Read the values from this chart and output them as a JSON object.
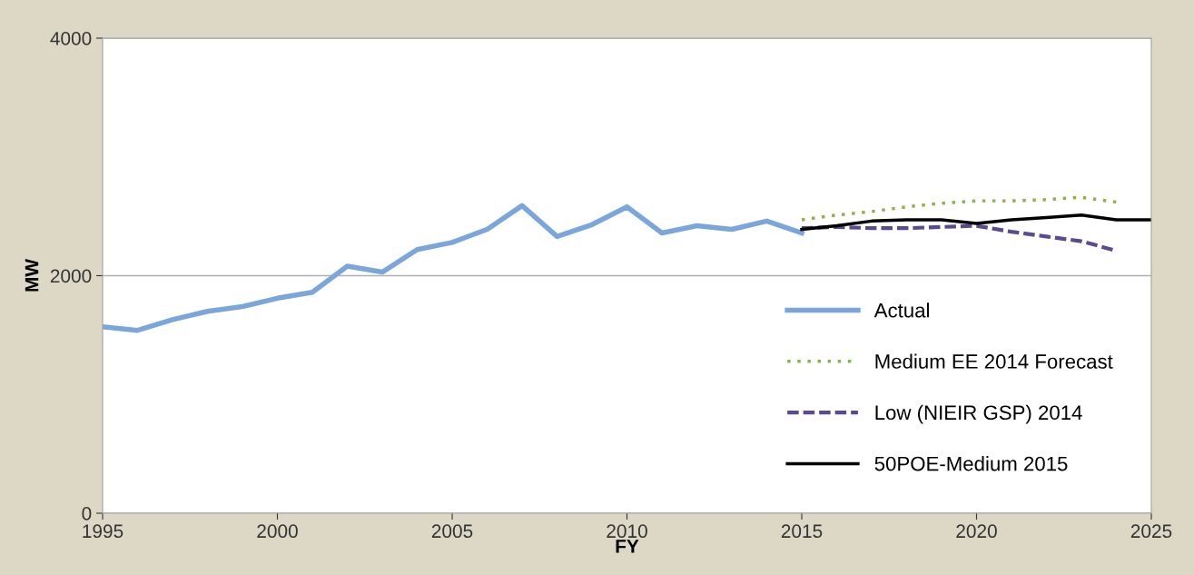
{
  "chart_data": {
    "type": "line",
    "xlabel": "FY",
    "ylabel": "MW",
    "xlim": [
      1995,
      2025
    ],
    "xticks": [
      1995,
      2000,
      2005,
      2010,
      2015,
      2020,
      2025
    ],
    "ylim": [
      0,
      4000
    ],
    "yticks": [
      0,
      2000,
      4000
    ],
    "grid": "y",
    "legend": "bottom right",
    "series": [
      {
        "name": "Actual",
        "color": "#7aa6dc",
        "line_style": "solid",
        "x": [
          1995,
          1996,
          1997,
          1998,
          1999,
          2000,
          2001,
          2002,
          2003,
          2004,
          2005,
          2006,
          2007,
          2008,
          2009,
          2010,
          2011,
          2012,
          2013,
          2014,
          2015
        ],
        "values": [
          1570,
          1540,
          1630,
          1700,
          1740,
          1810,
          1860,
          2080,
          2030,
          2220,
          2280,
          2390,
          2590,
          2330,
          2430,
          2580,
          2360,
          2420,
          2390,
          2460,
          2360
        ]
      },
      {
        "name": "Medium EE 2014 Forecast",
        "color": "#8ab34a",
        "line_style": "dotted",
        "x": [
          2015,
          2016,
          2017,
          2018,
          2019,
          2020,
          2021,
          2022,
          2023,
          2024
        ],
        "values": [
          2470,
          2510,
          2540,
          2580,
          2610,
          2630,
          2630,
          2640,
          2660,
          2620
        ]
      },
      {
        "name": "Low (NIEIR GSP) 2014",
        "color": "#5b4a8e",
        "line_style": "dashed",
        "x": [
          2015,
          2016,
          2017,
          2018,
          2019,
          2020,
          2021,
          2022,
          2023,
          2024
        ],
        "values": [
          2400,
          2410,
          2400,
          2400,
          2410,
          2420,
          2370,
          2330,
          2290,
          2210
        ]
      },
      {
        "name": "50POE-Medium 2015",
        "color": "#000000",
        "line_style": "solid",
        "x": [
          2015,
          2016,
          2017,
          2018,
          2019,
          2020,
          2021,
          2022,
          2023,
          2024,
          2025
        ],
        "values": [
          2390,
          2420,
          2460,
          2470,
          2470,
          2440,
          2470,
          2490,
          2510,
          2470,
          2470
        ]
      }
    ]
  }
}
